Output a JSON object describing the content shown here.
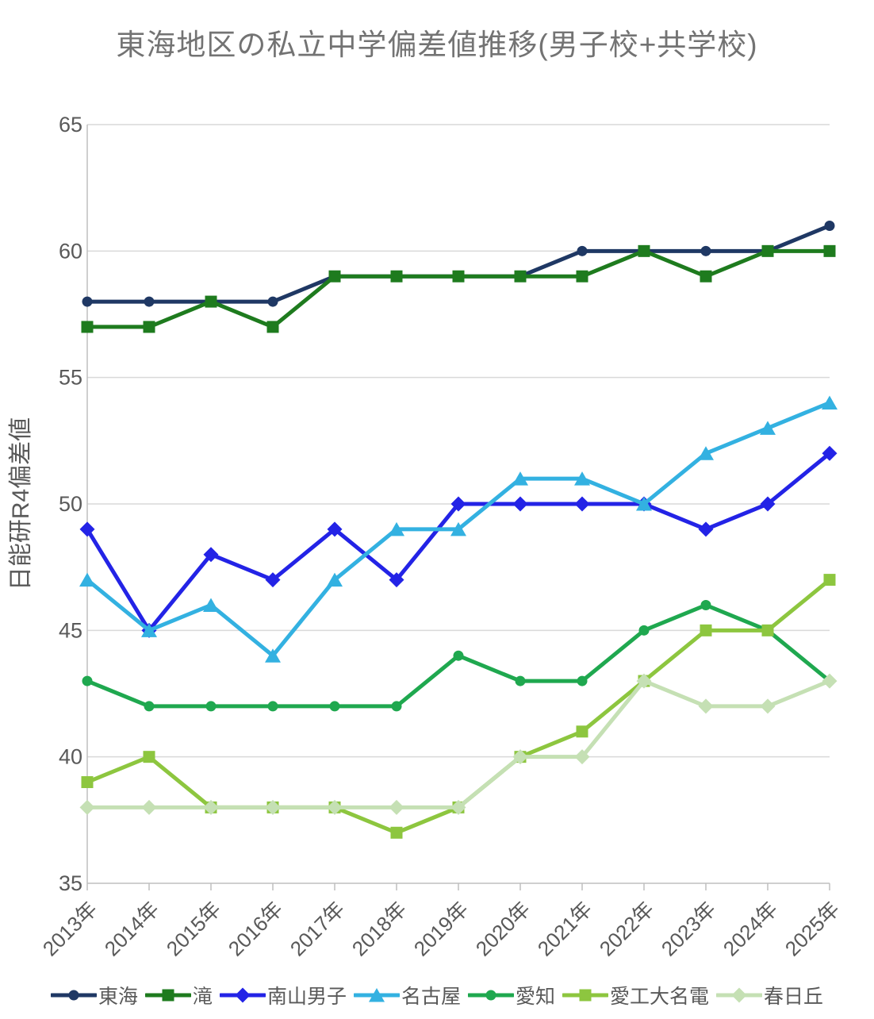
{
  "title": "東海地区の私立中学偏差値推移(男子校+共学校)",
  "y_axis_label": "日能研R4偏差値",
  "colors": {
    "title_text": "#737373",
    "axis_text": "#595959",
    "gridline": "#D9D9D9",
    "axis_line": "#BFBFBF"
  },
  "chart_data": {
    "type": "line",
    "title": "東海地区の私立中学偏差値推移(男子校+共学校)",
    "ylabel": "日能研R4偏差値",
    "xlabel": "",
    "ylim": [
      35,
      65
    ],
    "ytick_step": 5,
    "grid": true,
    "legend_position": "bottom",
    "categories": [
      "2013年",
      "2014年",
      "2015年",
      "2016年",
      "2017年",
      "2018年",
      "2019年",
      "2020年",
      "2021年",
      "2022年",
      "2023年",
      "2024年",
      "2025年"
    ],
    "series": [
      {
        "name": "東海",
        "color": "#1F3864",
        "marker": "circle",
        "values": [
          58,
          58,
          58,
          58,
          59,
          59,
          59,
          59,
          60,
          60,
          60,
          60,
          61
        ]
      },
      {
        "name": "滝",
        "color": "#1E7B1E",
        "marker": "square",
        "values": [
          57,
          57,
          58,
          57,
          59,
          59,
          59,
          59,
          59,
          60,
          59,
          60,
          60
        ]
      },
      {
        "name": "南山男子",
        "color": "#2323E6",
        "marker": "diamond",
        "values": [
          49,
          45,
          48,
          47,
          49,
          47,
          50,
          50,
          50,
          50,
          49,
          50,
          52
        ]
      },
      {
        "name": "名古屋",
        "color": "#33B1E1",
        "marker": "triangle",
        "values": [
          47,
          45,
          46,
          44,
          47,
          49,
          49,
          51,
          51,
          50,
          52,
          53,
          54
        ]
      },
      {
        "name": "愛知",
        "color": "#1FA84F",
        "marker": "circle",
        "values": [
          43,
          42,
          42,
          42,
          42,
          42,
          44,
          43,
          43,
          45,
          46,
          45,
          43
        ]
      },
      {
        "name": "愛工大名電",
        "color": "#8DC63F",
        "marker": "square",
        "values": [
          39,
          40,
          38,
          38,
          38,
          37,
          38,
          40,
          41,
          43,
          45,
          45,
          47
        ]
      },
      {
        "name": "春日丘",
        "color": "#C5E0B4",
        "marker": "diamond",
        "values": [
          38,
          38,
          38,
          38,
          38,
          38,
          38,
          40,
          40,
          43,
          42,
          42,
          43
        ]
      }
    ]
  }
}
